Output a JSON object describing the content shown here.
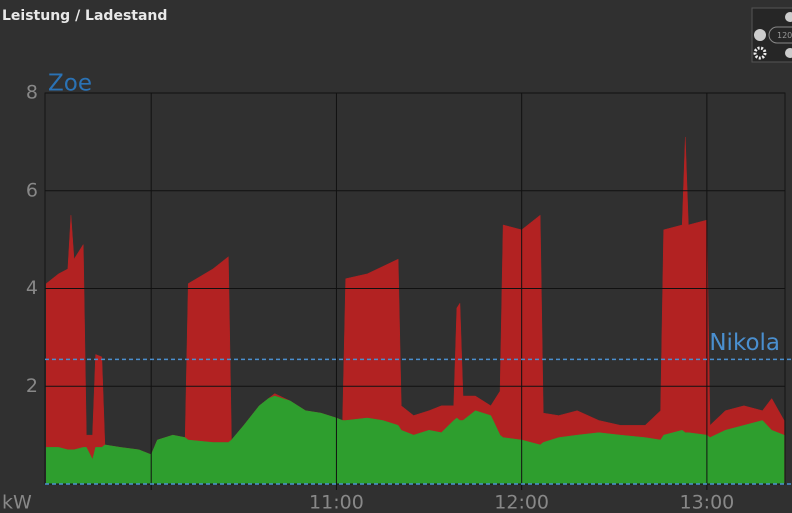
{
  "chart_data": {
    "type": "area",
    "title": "Leistung / Ladestand",
    "y_label": "kW",
    "annotation": "Zoe",
    "controls": {
      "zoom": "120"
    },
    "x": [
      566,
      570,
      573,
      574,
      575,
      578,
      579,
      581,
      582,
      584,
      585,
      590,
      596,
      600,
      602,
      607,
      611,
      612,
      620,
      625,
      626,
      630,
      635,
      638,
      640,
      645,
      650,
      655,
      660,
      662,
      663,
      670,
      675,
      680,
      681,
      685,
      690,
      694,
      698,
      699,
      700,
      701,
      705,
      710,
      713,
      714,
      720,
      726,
      727,
      732,
      738,
      745,
      752,
      760,
      765,
      766,
      772,
      773,
      774,
      780,
      781,
      786,
      792,
      798,
      801,
      805
    ],
    "series": [
      {
        "color": "#b22222",
        "values": [
          4.1,
          4.3,
          4.4,
          5.5,
          4.6,
          4.9,
          1.0,
          1.0,
          2.65,
          2.6,
          0.8,
          0.75,
          0.7,
          0.6,
          0.9,
          1.0,
          0.95,
          4.1,
          4.4,
          4.65,
          0.9,
          1.2,
          1.6,
          1.75,
          1.85,
          1.7,
          1.5,
          1.45,
          1.35,
          1.3,
          4.2,
          4.3,
          4.45,
          4.6,
          1.6,
          1.4,
          1.5,
          1.6,
          1.6,
          3.6,
          3.7,
          1.8,
          1.8,
          1.6,
          1.9,
          5.3,
          5.2,
          5.5,
          1.45,
          1.4,
          1.5,
          1.3,
          1.2,
          1.2,
          1.5,
          5.2,
          5.3,
          7.1,
          5.3,
          5.4,
          1.2,
          1.5,
          1.6,
          1.5,
          1.75,
          1.3
        ]
      },
      {
        "color": "#2e9e2e",
        "values": [
          0.75,
          0.75,
          0.7,
          0.7,
          0.7,
          0.75,
          0.75,
          0.5,
          0.75,
          0.75,
          0.8,
          0.75,
          0.7,
          0.6,
          0.9,
          1.0,
          0.95,
          0.9,
          0.85,
          0.85,
          0.9,
          1.2,
          1.6,
          1.75,
          1.8,
          1.7,
          1.5,
          1.45,
          1.35,
          1.3,
          1.3,
          1.35,
          1.3,
          1.2,
          1.1,
          1.0,
          1.1,
          1.05,
          1.3,
          1.35,
          1.3,
          1.3,
          1.5,
          1.4,
          1.0,
          0.95,
          0.9,
          0.8,
          0.85,
          0.95,
          1.0,
          1.05,
          1.0,
          0.95,
          0.9,
          1.0,
          1.1,
          1.05,
          1.05,
          1.0,
          0.95,
          1.1,
          1.2,
          1.3,
          1.1,
          1.0
        ]
      }
    ],
    "ref_lines": [
      {
        "value": 2.55,
        "label": "Nikola",
        "color": "#4a8fcf"
      },
      {
        "value": 0,
        "color": "#4a8fcf"
      }
    ],
    "xlim": [
      565.6,
      805.3
    ],
    "xticks": [
      {
        "value": 600,
        "label": null
      },
      {
        "value": 660,
        "label": "11:00"
      },
      {
        "value": 720,
        "label": "12:00"
      },
      {
        "value": 780,
        "label": "13:00"
      }
    ],
    "ylim": [
      0,
      8
    ],
    "yticks": [
      2,
      4,
      6,
      8
    ],
    "grid": true
  }
}
